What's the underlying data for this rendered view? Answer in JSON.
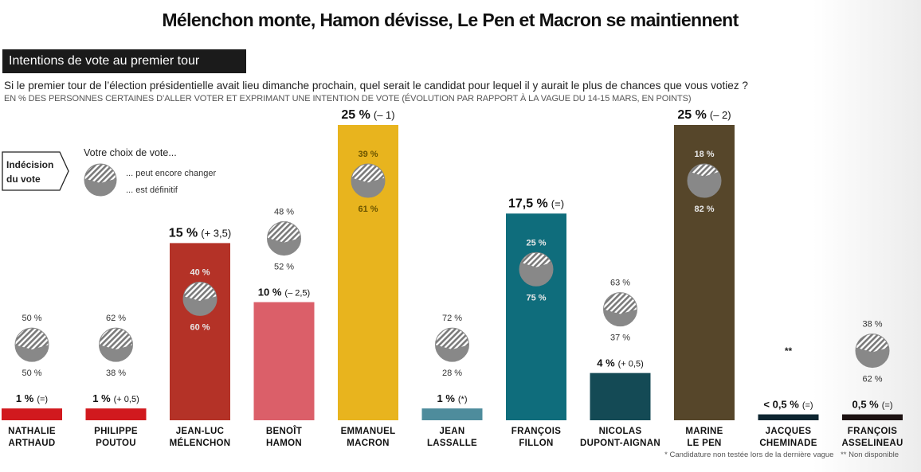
{
  "title": "Mélenchon monte, Hamon dévisse, Le Pen et Macron se maintiennent",
  "section": "Intentions de vote au premier tour",
  "question": "Si le premier tour de l’élection présidentielle avait lieu dimanche prochain, quel serait le candidat pour lequel il y aurait le plus de chances que vous votiez ?",
  "subtitle": "EN % DES PERSONNES CERTAINES D’ALLER VOTER ET EXPRIMANT UNE INTENTION DE VOTE (ÉVOLUTION PAR RAPPORT À LA VAGUE DU 14-15 MARS, EN POINTS)",
  "legend": {
    "badge": [
      "Indécision",
      "du vote"
    ],
    "heading": "Votre choix de vote...",
    "may_change": "... peut encore changer",
    "definitive": "... est définitif"
  },
  "footnotes": {
    "asterisk": "* Candidature non testée lors de la dernière vague",
    "double_asterisk": "** Non disponible"
  },
  "colors": {
    "hatch": "#777777",
    "pie_grey": "#888888"
  },
  "chart_data": {
    "type": "bar",
    "ylim": [
      0,
      25
    ],
    "categories": [
      [
        "NATHALIE",
        "ARTHAUD"
      ],
      [
        "PHILIPPE",
        "POUTOU"
      ],
      [
        "JEAN-LUC",
        "MÉLENCHON"
      ],
      [
        "BENOÎT",
        "HAMON"
      ],
      [
        "EMMANUEL",
        "MACRON"
      ],
      [
        "JEAN",
        "LASSALLE"
      ],
      [
        "FRANÇOIS",
        "FILLON"
      ],
      [
        "NICOLAS",
        "DUPONT-AIGNAN"
      ],
      [
        "MARINE",
        "LE PEN"
      ],
      [
        "JACQUES",
        "CHEMINADE"
      ],
      [
        "FRANÇOIS",
        "ASSELINEAU"
      ]
    ],
    "values": [
      1,
      1,
      15,
      10,
      25,
      1,
      17.5,
      4,
      25,
      0.5,
      0.5
    ],
    "value_labels": [
      "1 %",
      "1 %",
      "15 %",
      "10 %",
      "25 %",
      "1 %",
      "17,5 %",
      "4 %",
      "25 %",
      "< 0,5 %",
      "0,5 %"
    ],
    "changes": [
      "(=)",
      "(+ 0,5)",
      "(+ 3,5)",
      "(– 2,5)",
      "(– 1)",
      "(*)",
      "(=)",
      "(+ 0,5)",
      "(– 2)",
      "(=)",
      "(=)"
    ],
    "bar_colors": [
      "#d1191e",
      "#d1191e",
      "#b43227",
      "#db5f69",
      "#e8b41e",
      "#4e8c9c",
      "#0f6d7c",
      "#144a55",
      "#56462a",
      "#0d2530",
      "#1c1212"
    ],
    "may_change_pct": [
      50,
      62,
      40,
      48,
      39,
      72,
      25,
      63,
      18,
      null,
      38
    ],
    "definitive_pct": [
      50,
      38,
      60,
      52,
      61,
      28,
      75,
      37,
      82,
      null,
      62
    ],
    "may_change_labels": [
      "50 %",
      "62 %",
      "40 %",
      "48 %",
      "39 %",
      "72 %",
      "25 %",
      "63 %",
      "18 %",
      "",
      "38 %"
    ],
    "definitive_labels": [
      "50 %",
      "38 %",
      "60 %",
      "52 %",
      "61 %",
      "28 %",
      "75 %",
      "37 %",
      "82 %",
      "",
      "62 %"
    ],
    "not_available_mark": [
      "",
      "",
      "",
      "",
      "",
      "",
      "",
      "",
      "",
      "**",
      ""
    ]
  }
}
